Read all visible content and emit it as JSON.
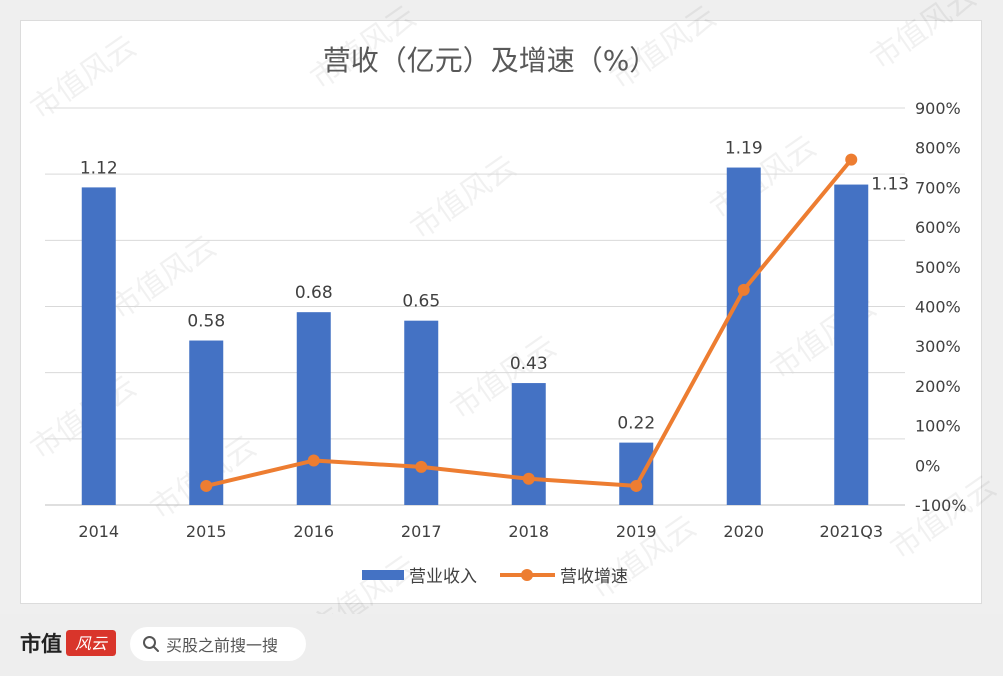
{
  "chart_data": {
    "type": "bar+line",
    "title": "营收（亿元）及增速（%）",
    "categories": [
      "2014",
      "2015",
      "2016",
      "2017",
      "2018",
      "2019",
      "2020",
      "2021Q3"
    ],
    "series": [
      {
        "name": "营业收入",
        "type": "bar",
        "axis": "left",
        "values": [
          1.12,
          0.58,
          0.68,
          0.65,
          0.43,
          0.22,
          1.19,
          1.13
        ],
        "labels": [
          "1.12",
          "0.58",
          "0.68",
          "0.65",
          "0.43",
          "0.22",
          "1.19",
          "1.13"
        ],
        "color": "#4472C4"
      },
      {
        "name": "营收增速",
        "type": "line",
        "axis": "right",
        "values": [
          null,
          -52,
          12,
          -4,
          -34,
          -52,
          442,
          770
        ],
        "color": "#ED7D31"
      }
    ],
    "left_axis": {
      "min": 0,
      "max": 1.4,
      "gridlines": 6
    },
    "right_axis": {
      "min": -100,
      "max": 900,
      "step": 100,
      "tick_labels": [
        "-100%",
        "0%",
        "100%",
        "200%",
        "300%",
        "400%",
        "500%",
        "600%",
        "700%",
        "800%",
        "900%"
      ]
    },
    "legend_position": "bottom",
    "grid": true
  },
  "watermark_text": "市值风云",
  "footer": {
    "brand": "市值",
    "logo_text": "风云",
    "search_placeholder": "买股之前搜一搜"
  },
  "colors": {
    "bar": "#4472C4",
    "line": "#ED7D31",
    "logo_bg": "#d9352b"
  }
}
